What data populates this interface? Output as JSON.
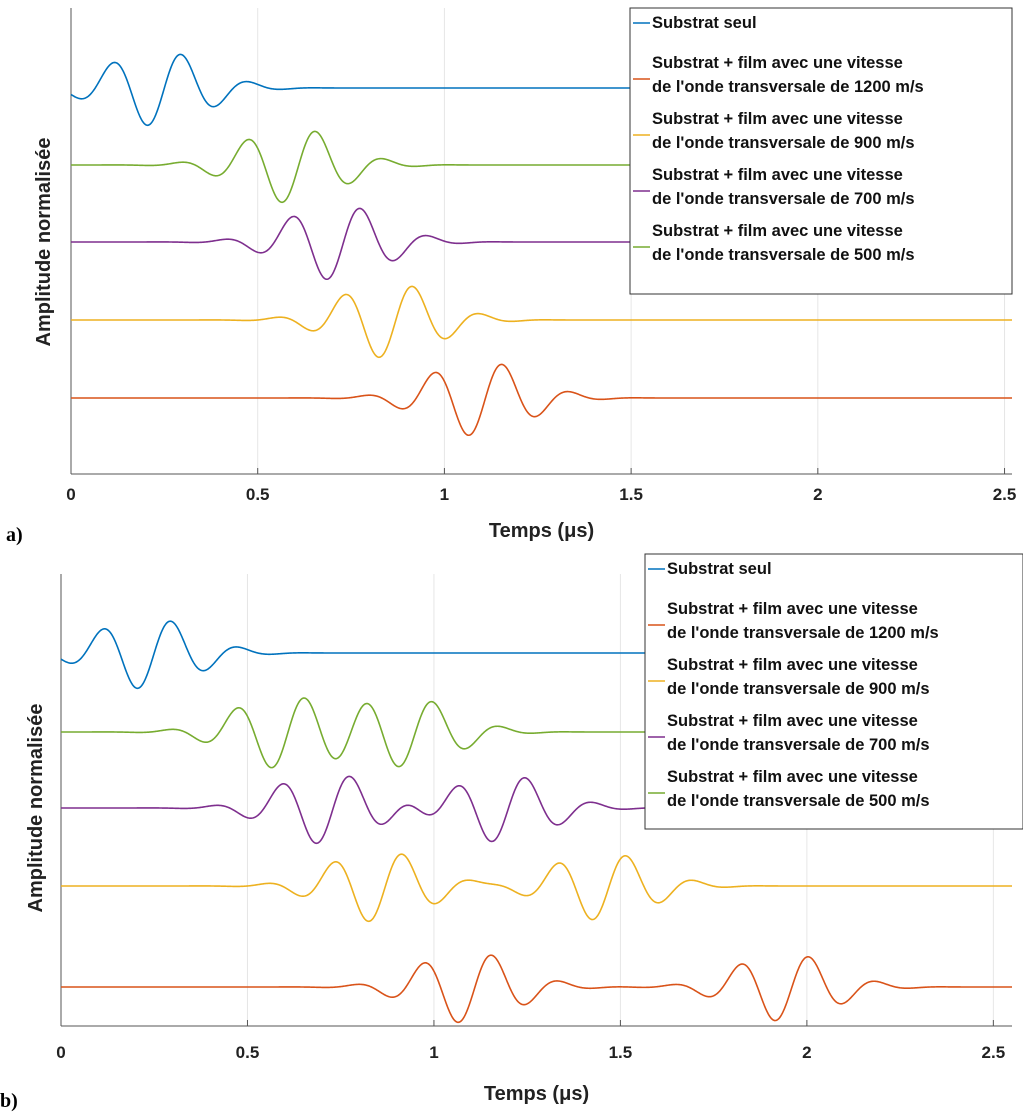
{
  "chart_data": [
    {
      "type": "line",
      "panel_label": "a)",
      "xlabel": "Temps (μs)",
      "ylabel": "Amplitude normalisée",
      "xlim": [
        0,
        2.52
      ],
      "xticks": [
        "0",
        "0.5",
        "1",
        "1.5",
        "2",
        "2.5"
      ],
      "grid": "vertical",
      "legend_position": "top-right",
      "series": [
        {
          "name": "Substrat seul",
          "color": "#0072BD",
          "echoes": [
            {
              "t0": 0.23,
              "amp": 1.0
            }
          ],
          "tail": 0.04
        },
        {
          "name": "Substrat + film avec une vitesse de l'onde transversale de 1200 m/s",
          "color": "#D95319",
          "echoes": [
            {
              "t0": 1.09,
              "amp": 1.0
            }
          ],
          "tail": 0.04
        },
        {
          "name": "Substrat + film avec une vitesse de l'onde transversale de 900 m/s",
          "color": "#EDB120",
          "echoes": [
            {
              "t0": 0.85,
              "amp": 1.0
            }
          ],
          "tail": 0.04
        },
        {
          "name": "Substrat + film avec une vitesse de l'onde transversale de 700 m/s",
          "color": "#7E2F8E",
          "echoes": [
            {
              "t0": 0.71,
              "amp": 1.0
            }
          ],
          "tail": 0.04
        },
        {
          "name": "Substrat + film avec une vitesse de l'onde transversale de 500 m/s",
          "color": "#77AC30",
          "echoes": [
            {
              "t0": 0.59,
              "amp": 1.0
            }
          ],
          "tail": 0.04
        }
      ],
      "plot_order_top_to_bottom": [
        "Substrat seul",
        "500 m/s",
        "700 m/s",
        "900 m/s",
        "1200 m/s"
      ]
    },
    {
      "type": "line",
      "panel_label": "b)",
      "xlabel": "Temps (μs)",
      "ylabel": "Amplitude normalisée",
      "xlim": [
        0,
        2.55
      ],
      "xticks": [
        "0",
        "0.5",
        "1",
        "1.5",
        "2",
        "2.5"
      ],
      "grid": "vertical",
      "legend_position": "top-right",
      "series": [
        {
          "name": "Substrat seul",
          "color": "#0072BD",
          "echoes": [
            {
              "t0": 0.23,
              "amp": 1.0
            }
          ],
          "tail": 0.04
        },
        {
          "name": "Substrat + film avec une vitesse de l'onde transversale de 1200 m/s",
          "color": "#D95319",
          "echoes": [
            {
              "t0": 1.09,
              "amp": 1.0
            },
            {
              "t0": 1.94,
              "amp": 0.95
            }
          ],
          "tail": 0.04
        },
        {
          "name": "Substrat + film avec une vitesse de l'onde transversale de 900 m/s",
          "color": "#EDB120",
          "echoes": [
            {
              "t0": 0.85,
              "amp": 1.0
            },
            {
              "t0": 1.45,
              "amp": 0.95
            }
          ],
          "tail": 0.04
        },
        {
          "name": "Substrat + film avec une vitesse de l'onde transversale de 700 m/s",
          "color": "#7E2F8E",
          "echoes": [
            {
              "t0": 0.71,
              "amp": 1.0
            },
            {
              "t0": 1.18,
              "amp": 0.95
            }
          ],
          "tail": 0.04
        },
        {
          "name": "Substrat + film avec une vitesse de l'onde transversale de 500 m/s",
          "color": "#77AC30",
          "echoes": [
            {
              "t0": 0.59,
              "amp": 1.0
            },
            {
              "t0": 0.93,
              "amp": 0.95
            }
          ],
          "tail": 0.04
        }
      ],
      "plot_order_top_to_bottom": [
        "Substrat seul",
        "500 m/s",
        "700 m/s",
        "900 m/s",
        "1200 m/s"
      ]
    }
  ],
  "legend": {
    "items": [
      {
        "line1": "Substrat seul",
        "line2": "",
        "color": "#0072BD"
      },
      {
        "line1": "Substrat + film avec une vitesse",
        "line2": "de l'onde transversale de 1200 m/s",
        "color": "#D95319"
      },
      {
        "line1": "Substrat + film avec une vitesse",
        "line2": "de l'onde transversale de 900 m/s",
        "color": "#EDB120"
      },
      {
        "line1": "Substrat + film avec une vitesse",
        "line2": "de l'onde transversale de 700 m/s",
        "color": "#7E2F8E"
      },
      {
        "line1": "Substrat + film avec une vitesse",
        "line2": "de l'onde transversale de 500 m/s",
        "color": "#77AC30"
      }
    ]
  }
}
